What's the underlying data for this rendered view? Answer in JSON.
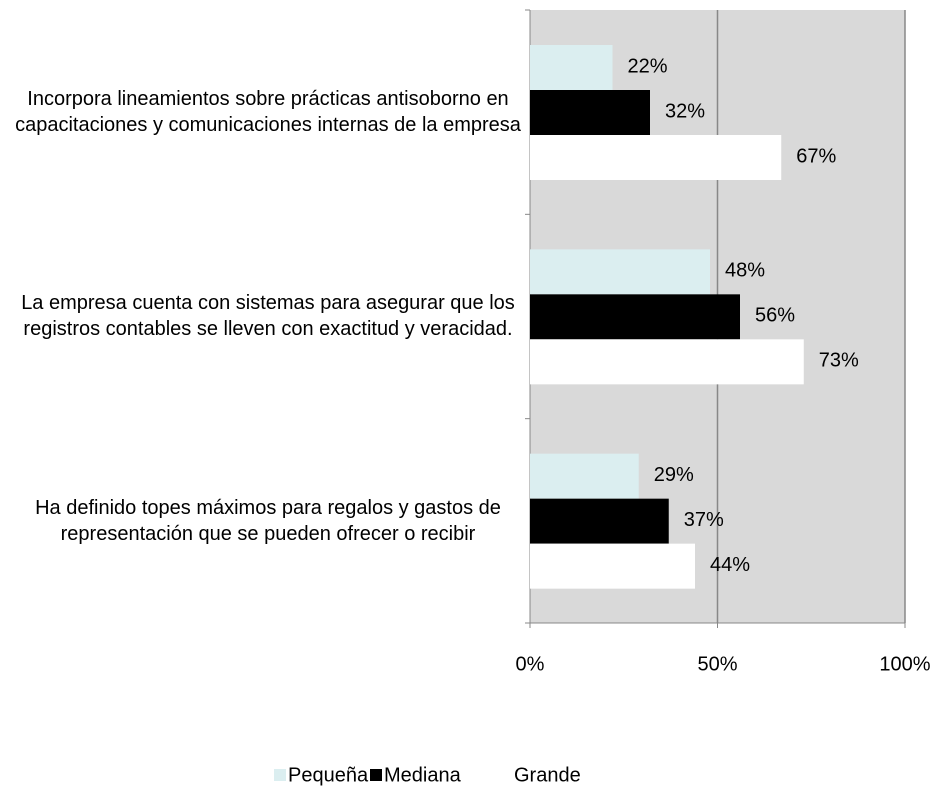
{
  "chart_data": {
    "type": "bar",
    "orientation": "horizontal",
    "categories": [
      "Incorpora lineamientos sobre prácticas antisoborno en capacitaciones y comunicaciones internas de la empresa",
      "La empresa cuenta con sistemas para asegurar que los registros contables se lleven con exactitud y veracidad.",
      "Ha definido topes máximos para regalos y gastos de representación que se pueden ofrecer o recibir"
    ],
    "series": [
      {
        "name": "Pequeña",
        "color": "#dbeef0",
        "values": [
          22,
          48,
          29
        ],
        "value_labels": [
          "22%",
          "48%",
          "29%"
        ]
      },
      {
        "name": "Mediana",
        "color": "#000000",
        "values": [
          32,
          56,
          37
        ],
        "value_labels": [
          "32%",
          "56%",
          "37%"
        ]
      },
      {
        "name": "Grande",
        "color": "#ffffff",
        "values": [
          67,
          73,
          44
        ],
        "value_labels": [
          "67%",
          "73%",
          "44%"
        ]
      }
    ],
    "xlim": [
      0,
      100
    ],
    "xticks": [
      {
        "value": 0,
        "label": "0%"
      },
      {
        "value": 50,
        "label": "50%"
      },
      {
        "value": 100,
        "label": "100%"
      }
    ],
    "grid": true,
    "legend": "bottom",
    "plot_background": "#d9d9d9"
  }
}
